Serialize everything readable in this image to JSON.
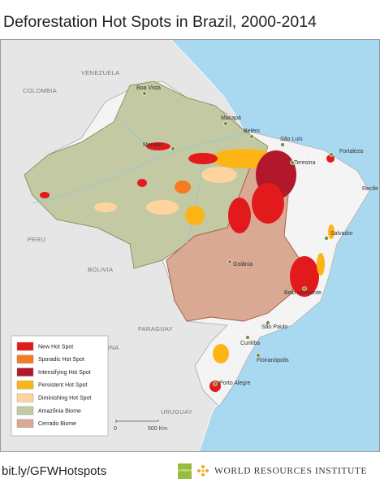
{
  "title": "Deforestation Hot Spots in Brazil, 2000-2014",
  "countries": [
    "VENEZUELA",
    "COLOMBIA",
    "PERU",
    "BOLIVIA",
    "PARAGUAY",
    "ARGENTINA",
    "URUGUAY"
  ],
  "cities": [
    "Boa Vista",
    "Macapá",
    "Belém",
    "São Luís",
    "Fortaleza",
    "Teresina",
    "Recife",
    "Manaus",
    "Salvador",
    "Goiânia",
    "Belo Horizonte",
    "São Paulo",
    "Curitiba",
    "Florianópolis",
    "Porto Alegre"
  ],
  "legend": [
    {
      "label": "New Hot Spot",
      "color": "#e31a1c"
    },
    {
      "label": "Sporadic Hot Spot",
      "color": "#f47b20"
    },
    {
      "label": "Intensifying Hot Spot",
      "color": "#b2182b"
    },
    {
      "label": "Persistent Hot Spot",
      "color": "#fdb515"
    },
    {
      "label": "Diminishing Hot Spot",
      "color": "#fdd49e"
    },
    {
      "label": "Amazônia Biome",
      "color": "#c3c9a2"
    },
    {
      "label": "Cerrado Biome",
      "color": "#d9a993"
    }
  ],
  "scale": [
    "0",
    "500 Km"
  ],
  "footer": {
    "link": "bit.ly/GFWHotspots",
    "logo": "GLOBAL FOREST WATCH",
    "org": "WORLD RESOURCES INSTITUTE"
  }
}
